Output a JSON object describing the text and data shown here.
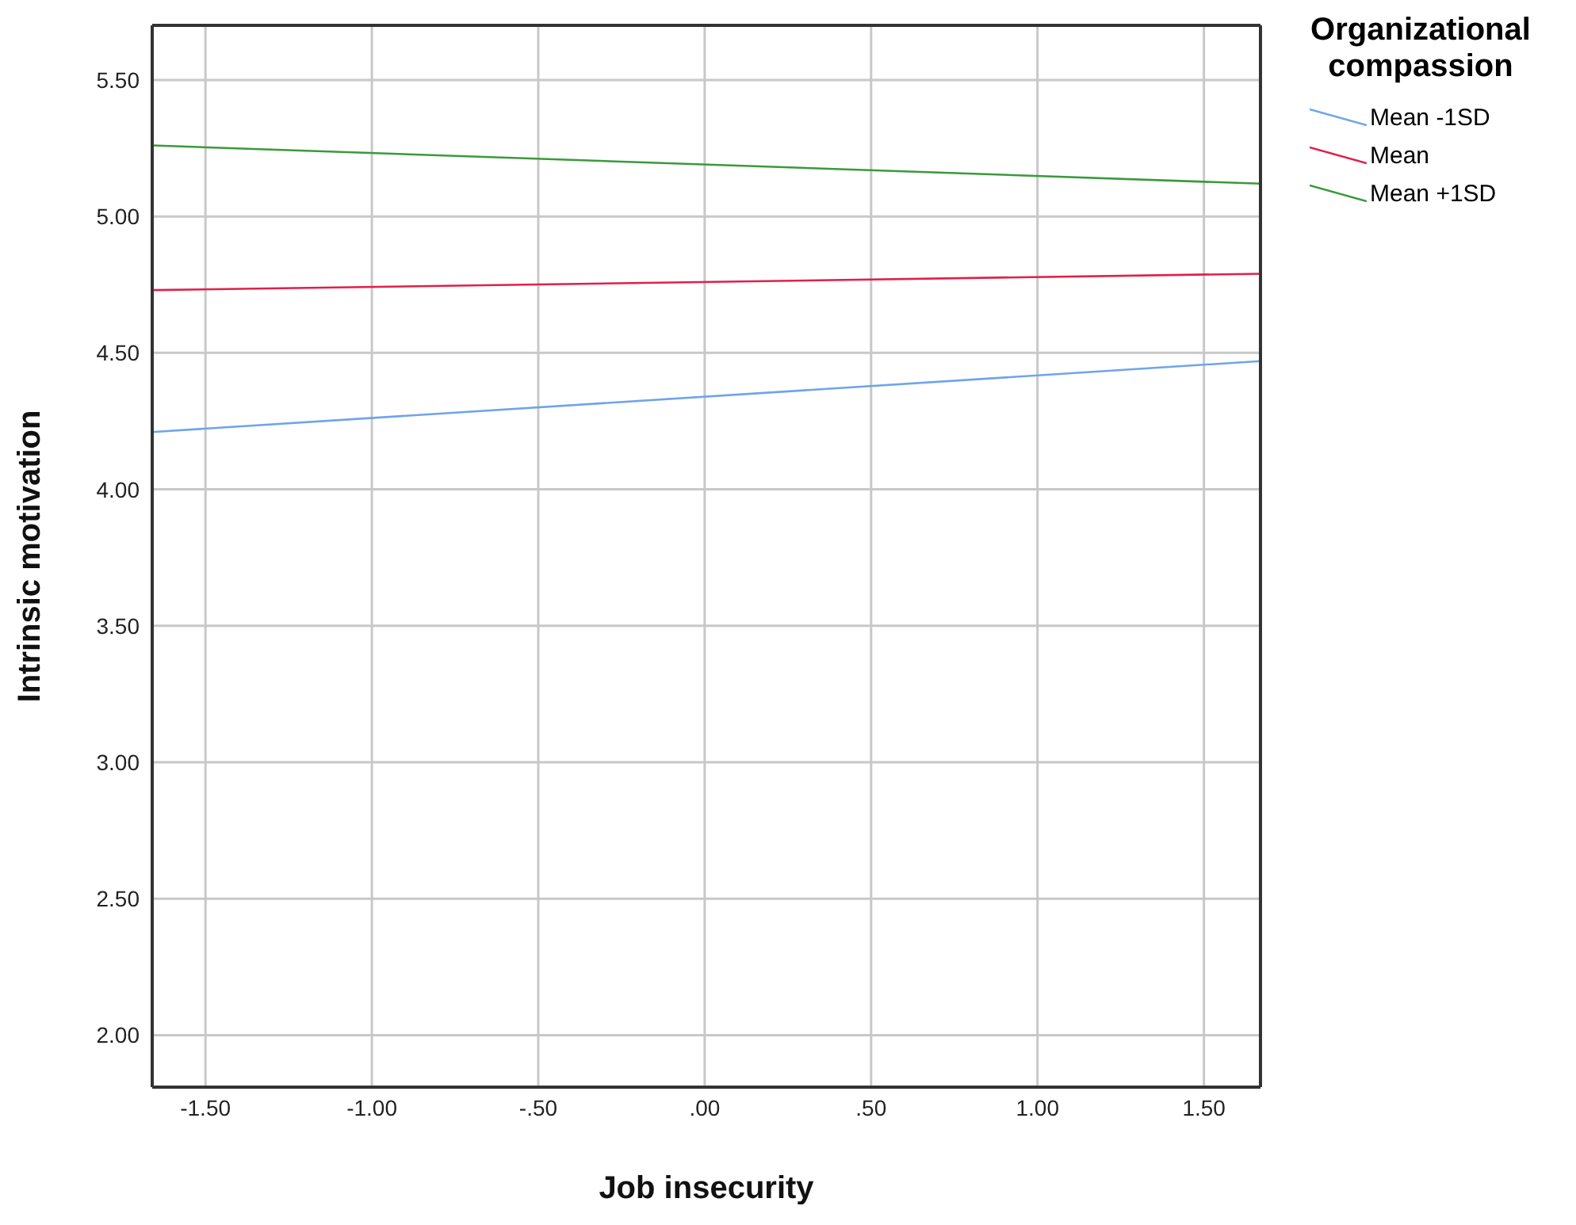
{
  "chart_data": {
    "type": "line",
    "xlabel": "Job insecurity",
    "ylabel": "Intrinsic motivation",
    "legend_title": "Organizational compassion",
    "x": [
      -1.66,
      1.67
    ],
    "series": [
      {
        "name": "Mean -1SD",
        "color": "#6fa4ea",
        "values": [
          4.21,
          4.47
        ]
      },
      {
        "name": "Mean",
        "color": "#e0204a",
        "values": [
          4.73,
          4.79
        ]
      },
      {
        "name": "Mean +1SD",
        "color": "#3a9a3a",
        "values": [
          5.26,
          5.12
        ]
      }
    ],
    "xlim": [
      -1.66,
      1.67
    ],
    "xticks": [
      {
        "value": -1.5,
        "label": "-1.50"
      },
      {
        "value": -1,
        "label": "-1.00"
      },
      {
        "value": -0.5,
        "label": "-.50"
      },
      {
        "value": 0,
        "label": ".00"
      },
      {
        "value": 0.5,
        "label": ".50"
      },
      {
        "value": 1,
        "label": "1.00"
      },
      {
        "value": 1.5,
        "label": "1.50"
      }
    ],
    "ylim": [
      1.81,
      5.7
    ],
    "yticks": [
      {
        "value": 2,
        "label": "2.00"
      },
      {
        "value": 2.5,
        "label": "2.50"
      },
      {
        "value": 3,
        "label": "3.00"
      },
      {
        "value": 3.5,
        "label": "3.50"
      },
      {
        "value": 4,
        "label": "4.00"
      },
      {
        "value": 4.5,
        "label": "4.50"
      },
      {
        "value": 5,
        "label": "5.00"
      },
      {
        "value": 5.5,
        "label": "5.50"
      }
    ],
    "grid": true,
    "legend": "right",
    "marker": "none",
    "line_style": "solid"
  }
}
